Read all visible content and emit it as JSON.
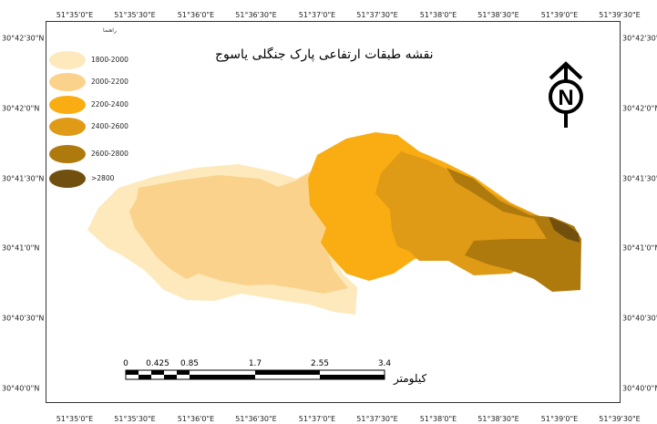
{
  "title": "نقشه طبقات ارتفاعی پارک جنگلی یاسوج",
  "legend": {
    "title": "راهنما",
    "items": [
      {
        "label": "1800-2000",
        "color": "#FDE9BC"
      },
      {
        "label": "2000-2200",
        "color": "#FAD28B"
      },
      {
        "label": "2200-2400",
        "color": "#F9AD13"
      },
      {
        "label": "2400-2600",
        "color": "#DF9A16"
      },
      {
        "label": "2600-2800",
        "color": "#AE7A0D"
      },
      {
        "label": ">2800",
        "color": "#714F0E"
      }
    ]
  },
  "graticule": {
    "longitudes_top": [
      "51°35'0\"E",
      "51°35'30\"E",
      "51°36'0\"E",
      "51°36'30\"E",
      "51°37'0\"E",
      "51°37'30\"E",
      "51°38'0\"E",
      "51°38'30\"E",
      "51°39'0\"E",
      "51°39'30\"E"
    ],
    "longitudes_bottom": [
      "51°35'0\"E",
      "51°35'30\"E",
      "51°36'0\"E",
      "51°36'30\"E",
      "51°37'0\"E",
      "51°37'30\"E",
      "51°38'0\"E",
      "51°38'30\"E",
      "51°39'0\"E",
      "51°39'30\"E"
    ],
    "latitudes_left": [
      "30°42'30\"N",
      "30°42'0\"N",
      "30°41'30\"N",
      "30°41'0\"N",
      "30°40'30\"N",
      "30°40'0\"N"
    ],
    "latitudes_right": [
      "30°42'30\"N",
      "30°42'0\"N",
      "30°41'30\"N",
      "30°41'0\"N",
      "30°40'30\"N",
      "30°40'0\"N"
    ]
  },
  "scale_bar": {
    "labels": [
      "0",
      "0.425",
      "0.85",
      "1.7",
      "2.55",
      "3.4"
    ],
    "unit": "کیلومتر"
  },
  "north_arrow": {
    "letter": "N",
    "icon": "north-arrow-icon"
  }
}
